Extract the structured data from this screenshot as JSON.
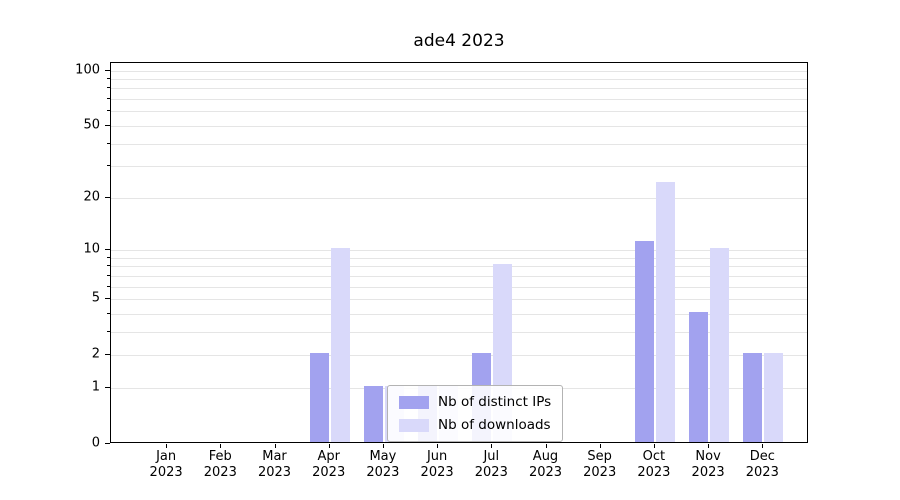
{
  "title": "ade4 2023",
  "chart_data": {
    "type": "bar",
    "title": "ade4 2023",
    "categories": [
      "Jan 2023",
      "Feb 2023",
      "Mar 2023",
      "Apr 2023",
      "May 2023",
      "Jun 2023",
      "Jul 2023",
      "Aug 2023",
      "Sep 2023",
      "Oct 2023",
      "Nov 2023",
      "Dec 2023"
    ],
    "series": [
      {
        "name": "Nb of distinct IPs",
        "color": "#a2a2ef",
        "values": [
          0,
          0,
          0,
          2,
          1,
          1,
          2,
          0,
          0,
          11,
          4,
          2
        ]
      },
      {
        "name": "Nb of downloads",
        "color": "#d9d9fa",
        "values": [
          0,
          0,
          0,
          10,
          1,
          1,
          8,
          0,
          0,
          24,
          10,
          2
        ]
      }
    ],
    "yscale": "symlog",
    "yticks": [
      0,
      1,
      2,
      5,
      10,
      20,
      50,
      100
    ],
    "grid_values": [
      1,
      2,
      3,
      4,
      5,
      6,
      7,
      8,
      9,
      10,
      20,
      30,
      40,
      50,
      60,
      70,
      80,
      90,
      100
    ],
    "ylim": [
      0,
      110
    ],
    "xlabel": "",
    "ylabel": "",
    "grid": "horizontal",
    "legend_position": "lower center"
  }
}
